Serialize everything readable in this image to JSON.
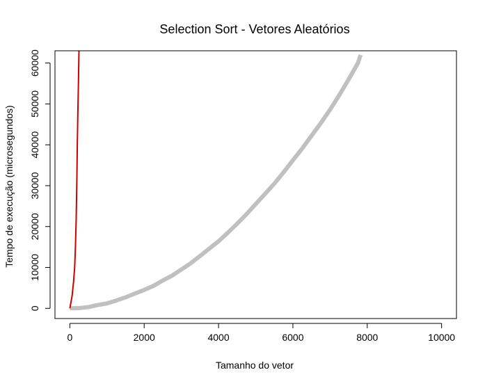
{
  "chart_data": {
    "type": "line",
    "title": "Selection Sort - Vetores Aleatórios",
    "xlabel": "Tamanho do vetor",
    "ylabel": "Tempo de execução (microsegundos)",
    "xlim": [
      -400,
      10400
    ],
    "ylim": [
      -2500,
      63000
    ],
    "x_ticks": [
      0,
      2000,
      4000,
      6000,
      8000,
      10000
    ],
    "y_ticks": [
      0,
      10000,
      20000,
      30000,
      40000,
      50000,
      60000
    ],
    "x_tick_labels": [
      "0",
      "2000",
      "4000",
      "6000",
      "8000",
      "10000"
    ],
    "y_tick_labels": [
      "0",
      "10000",
      "20000",
      "30000",
      "40000",
      "50000",
      "60000"
    ],
    "grid": false,
    "legend": "none",
    "series": [
      {
        "color": "#c0c0c0",
        "x": [
          0,
          250,
          500,
          750,
          1000,
          1250,
          1500,
          1750,
          2000,
          2250,
          2500,
          2750,
          3000,
          3250,
          3500,
          3750,
          4000,
          4250,
          4500,
          4750,
          5000,
          5250,
          5500,
          5750,
          6000,
          6250,
          6500,
          6750,
          7000,
          7250,
          7500,
          7750,
          7820
        ],
        "y": [
          0,
          50,
          300,
          800,
          1200,
          1900,
          2700,
          3600,
          4500,
          5500,
          6800,
          8000,
          9500,
          11000,
          12800,
          14600,
          16400,
          18500,
          20700,
          23000,
          25500,
          28000,
          30500,
          33300,
          36200,
          39100,
          42200,
          45300,
          48600,
          52200,
          56000,
          60000,
          62000
        ]
      },
      {
        "color": "#cc0000",
        "x": [
          0,
          60,
          100,
          130,
          150,
          170,
          190,
          200,
          215,
          230,
          245
        ],
        "y": [
          0,
          3000,
          6500,
          10000,
          15000,
          22000,
          32000,
          40000,
          48000,
          55000,
          63000
        ]
      }
    ]
  }
}
